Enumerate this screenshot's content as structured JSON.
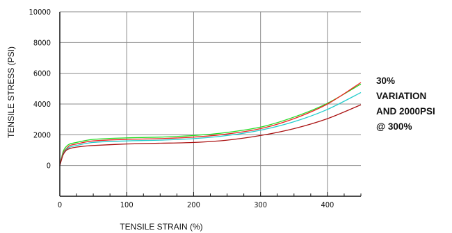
{
  "chart_data": {
    "type": "line",
    "title": "",
    "xlabel": "TENSILE STRAIN (%)",
    "ylabel": "TENSILE STRESS (PSI)",
    "xlim": [
      0,
      450
    ],
    "ylim": [
      -2000,
      10000
    ],
    "x_ticks": [
      0,
      100,
      200,
      300,
      400
    ],
    "y_ticks": [
      0,
      2000,
      4000,
      6000,
      8000,
      10000
    ],
    "grid": true,
    "legend": "none",
    "annotation_lines": [
      "30%",
      "VARIATION",
      "AND 2000PSI",
      "@ 300%"
    ],
    "series": [
      {
        "color": "#22dd22",
        "x": [
          0,
          5,
          10,
          15,
          25,
          50,
          100,
          150,
          200,
          250,
          300,
          350,
          400,
          450
        ],
        "y": [
          0,
          900,
          1250,
          1400,
          1500,
          1700,
          1800,
          1850,
          1950,
          2150,
          2500,
          3150,
          4050,
          5300
        ]
      },
      {
        "color": "#ee2222",
        "x": [
          0,
          5,
          10,
          15,
          25,
          50,
          100,
          150,
          200,
          250,
          300,
          350,
          400,
          450
        ],
        "y": [
          0,
          800,
          1100,
          1300,
          1400,
          1600,
          1700,
          1750,
          1850,
          2050,
          2400,
          3050,
          4000,
          5400
        ]
      },
      {
        "color": "#22cccc",
        "x": [
          0,
          5,
          10,
          15,
          25,
          50,
          100,
          150,
          200,
          250,
          300,
          350,
          400,
          450
        ],
        "y": [
          0,
          750,
          1050,
          1200,
          1300,
          1500,
          1600,
          1650,
          1750,
          1950,
          2300,
          2850,
          3650,
          4750
        ]
      },
      {
        "color": "#aa1111",
        "x": [
          0,
          5,
          10,
          15,
          25,
          50,
          100,
          150,
          200,
          250,
          300,
          350,
          400,
          450
        ],
        "y": [
          0,
          700,
          1000,
          1100,
          1200,
          1300,
          1400,
          1450,
          1500,
          1650,
          1950,
          2400,
          3050,
          3950
        ]
      }
    ]
  }
}
